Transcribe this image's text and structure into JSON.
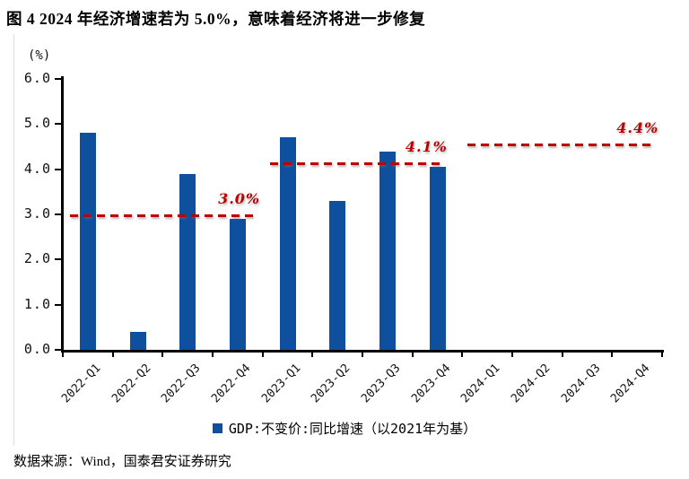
{
  "title": "图 4 2024 年经济增速若为 5.0%，意味着经济将进一步修复",
  "source_note": "数据来源：Wind，国泰君安证券研究",
  "colors": {
    "bar": "#0F509E",
    "annotation_red": "#C00000",
    "axis": "#000000",
    "doc_border": "#DCDCDC"
  },
  "chart_data": {
    "type": "bar",
    "unit_label": "(%)",
    "categories": [
      "2022-Q1",
      "2022-Q2",
      "2022-Q3",
      "2022-Q4",
      "2023-Q1",
      "2023-Q2",
      "2023-Q3",
      "2023-Q4",
      "2024-Q1",
      "2024-Q2",
      "2024-Q3",
      "2024-Q4"
    ],
    "values": [
      4.8,
      0.4,
      3.9,
      2.9,
      4.7,
      3.3,
      4.4,
      4.05,
      null,
      null,
      null,
      null
    ],
    "ylim": [
      0,
      6
    ],
    "ytick_step": 1,
    "ytick_labels": [
      "0.0",
      "1.0",
      "2.0",
      "3.0",
      "4.0",
      "5.0",
      "6.0"
    ],
    "grid": false,
    "legend_position": "bottom-center",
    "legend": [
      {
        "label": "GDP:不变价:同比增速（以2021年为基）",
        "color": "#0F509E"
      }
    ],
    "annotations": [
      {
        "label": "3.0%",
        "value": 3.0,
        "line_level": 2.97
      },
      {
        "label": "4.1%",
        "value": 4.1,
        "line_level": 4.12
      },
      {
        "label": "4.4%",
        "value": 4.4,
        "line_level": 4.53
      }
    ]
  }
}
